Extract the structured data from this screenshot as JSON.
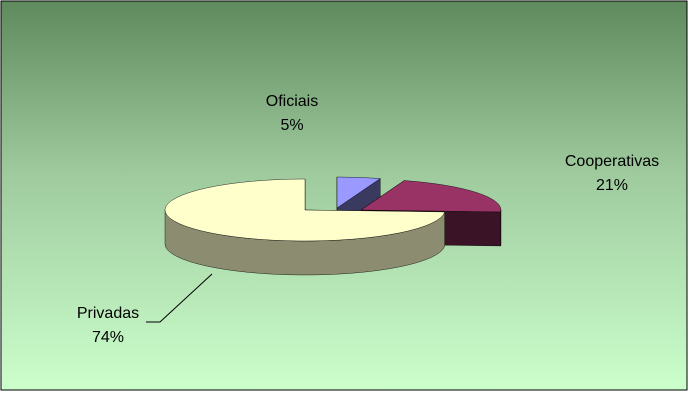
{
  "chart_data": {
    "type": "pie",
    "style": "3d-exploded",
    "title": "",
    "slices": [
      {
        "name": "Oficiais",
        "value": 5,
        "pct_label": "5%",
        "color": "#9999FF"
      },
      {
        "name": "Cooperativas",
        "value": 21,
        "pct_label": "21%",
        "color": "#993366"
      },
      {
        "name": "Privadas",
        "value": 74,
        "pct_label": "74%",
        "color": "#FFFFCC"
      }
    ],
    "legend": "none",
    "background": {
      "top": "#5E8A5E",
      "bottom": "#CCFFCC"
    }
  }
}
